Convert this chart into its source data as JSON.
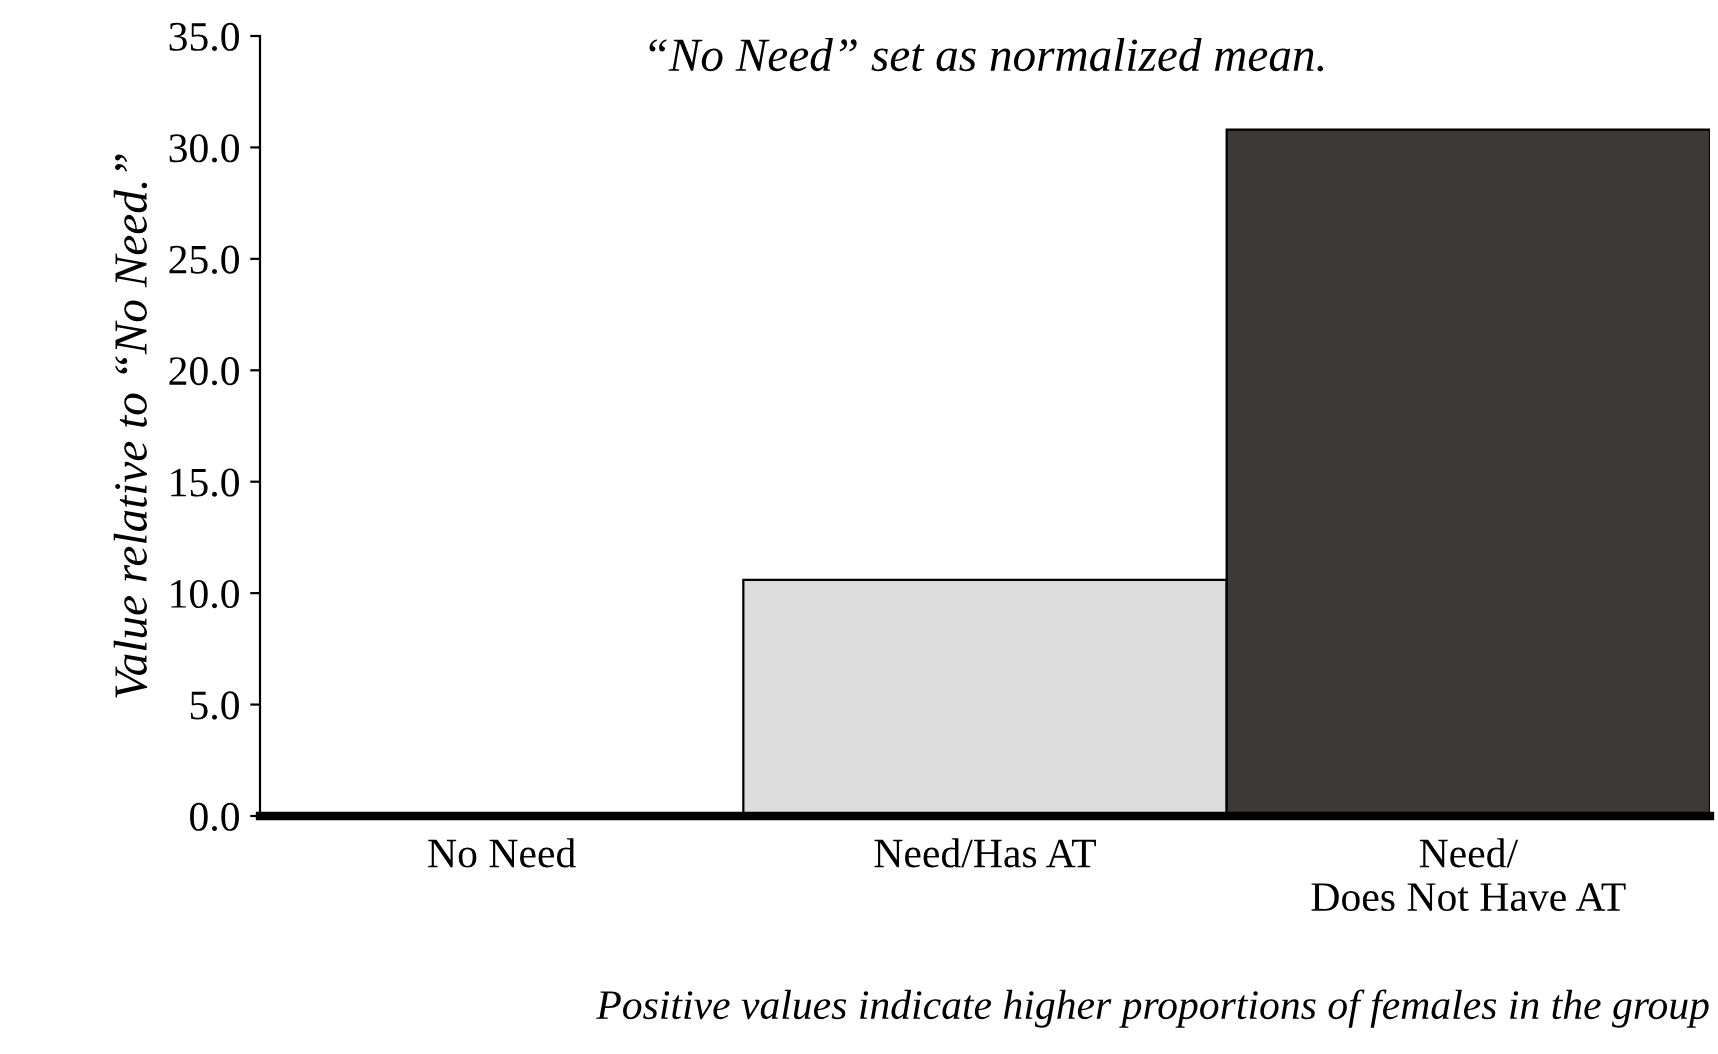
{
  "chart_data": {
    "type": "bar",
    "title": "“No Need” set as normalized mean.",
    "ylabel": "Value relative to “No Need.”",
    "categories": [
      "No Need",
      "Need/Has AT",
      "Need/\nDoes Not Have AT"
    ],
    "values": [
      0,
      10.6,
      30.8
    ],
    "colors": [
      "#000000",
      "#dddddd",
      "#3d3936"
    ],
    "ylim": [
      0,
      35
    ],
    "yticks": [
      {
        "value": 0,
        "label": "0.0"
      },
      {
        "value": 5,
        "label": "5.0"
      },
      {
        "value": 10,
        "label": "10.0"
      },
      {
        "value": 15,
        "label": "15.0"
      },
      {
        "value": 20,
        "label": "20.0"
      },
      {
        "value": 25,
        "label": "25.0"
      },
      {
        "value": 30,
        "label": "30.0"
      },
      {
        "value": 35,
        "label": "35.0"
      }
    ],
    "grid": false,
    "legend": false,
    "annotations": [
      "Positive values indicate higher proportions of females in the group"
    ]
  }
}
